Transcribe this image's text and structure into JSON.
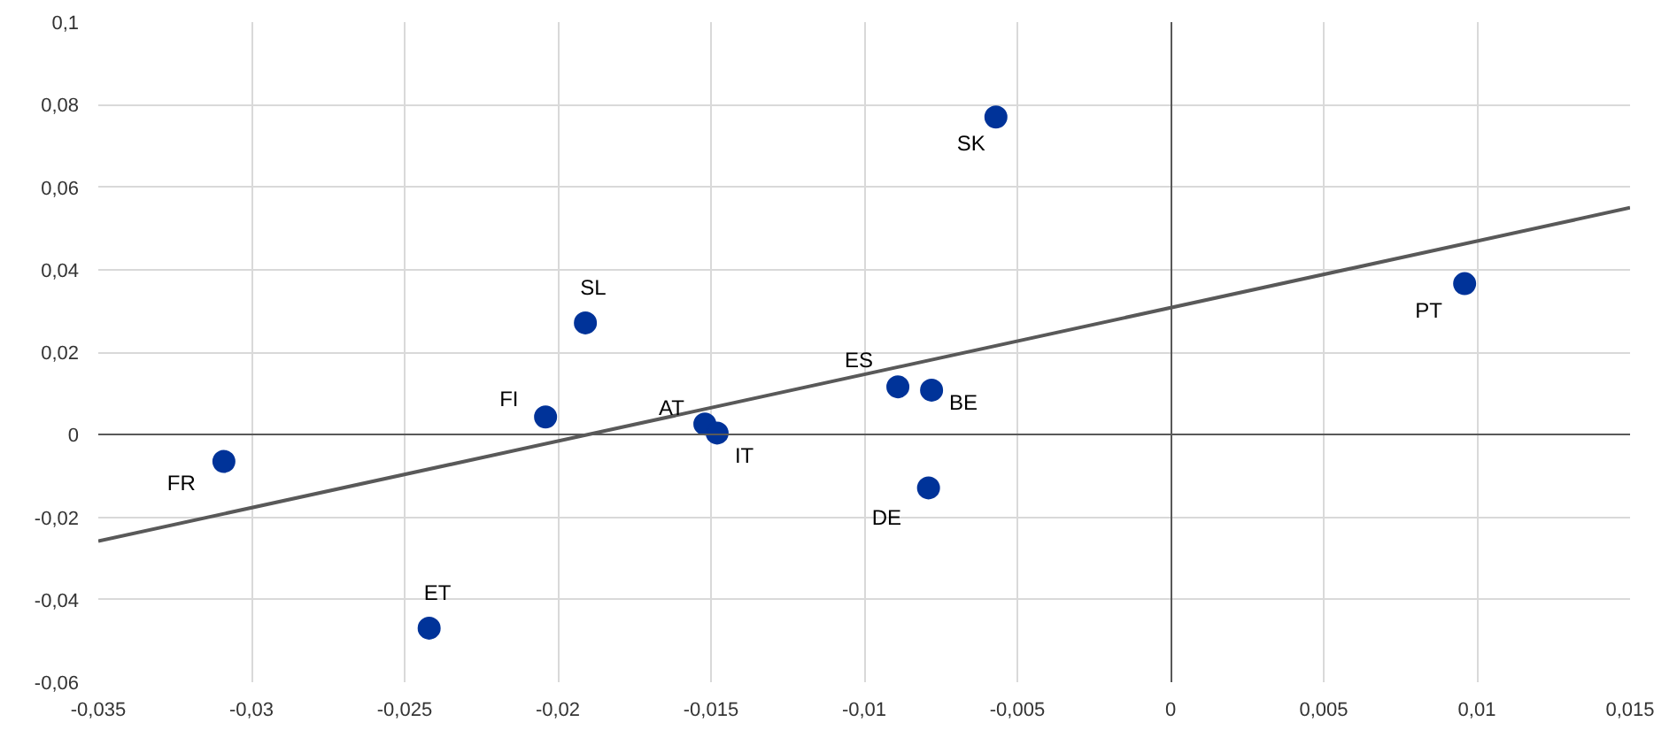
{
  "chart_data": {
    "type": "scatter",
    "grid": true,
    "xlim": [
      -0.035,
      0.015
    ],
    "xticks": [
      {
        "value": -0.035,
        "label": "-0,035"
      },
      {
        "value": -0.03,
        "label": "-0,03"
      },
      {
        "value": -0.025,
        "label": "-0,025"
      },
      {
        "value": -0.02,
        "label": "-0,02"
      },
      {
        "value": -0.015,
        "label": "-0,015"
      },
      {
        "value": -0.01,
        "label": "-0,01"
      },
      {
        "value": -0.005,
        "label": "-0,005"
      },
      {
        "value": 0,
        "label": "0"
      },
      {
        "value": 0.005,
        "label": "0,005"
      },
      {
        "value": 0.01,
        "label": "0,01"
      },
      {
        "value": 0.015,
        "label": "0,015"
      }
    ],
    "ylim": [
      -0.06,
      0.1
    ],
    "yticks": [
      {
        "value": -0.06,
        "label": "-0,06"
      },
      {
        "value": -0.04,
        "label": "-0,04"
      },
      {
        "value": -0.02,
        "label": "-0,02"
      },
      {
        "value": 0,
        "label": "0"
      },
      {
        "value": 0.02,
        "label": "0,02"
      },
      {
        "value": 0.04,
        "label": "0,04"
      },
      {
        "value": 0.06,
        "label": "0,06"
      },
      {
        "value": 0.08,
        "label": "0,08"
      },
      {
        "value": 0.1,
        "label": "0,1"
      }
    ],
    "series": [
      {
        "color": "#003399",
        "marker": "circle",
        "x": [
          -0.0057,
          0.0096,
          -0.0191,
          -0.0204,
          -0.0309,
          -0.0242,
          -0.0152,
          -0.0148,
          -0.0089,
          -0.0078,
          -0.0079
        ],
        "values": [
          0.077,
          0.0366,
          0.0271,
          0.0043,
          -0.0065,
          -0.0469,
          0.0026,
          0.0004,
          0.0116,
          0.0108,
          -0.0129
        ],
        "value_labels": [
          "SK",
          "PT",
          "SL",
          "FI",
          "FR",
          "ET",
          "AT",
          "IT",
          "ES",
          "BE",
          "DE"
        ]
      },
      {
        "type": "line",
        "marker": "none",
        "color": "#595959",
        "x": [
          -0.035,
          0.015
        ],
        "values": [
          -0.0258,
          0.055
        ]
      }
    ]
  }
}
